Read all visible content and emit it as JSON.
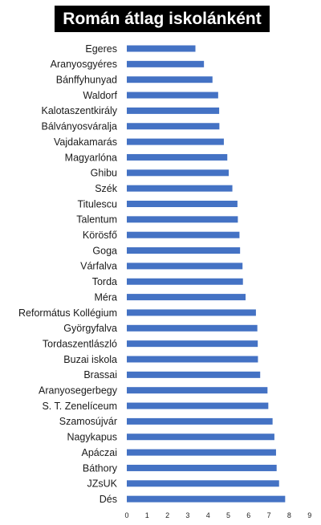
{
  "chart_data": {
    "type": "bar",
    "orientation": "horizontal",
    "title": "Román átlag iskolánként",
    "categories": [
      "Egeres",
      "Aranyosgyéres",
      "Bánffyhunyad",
      "Waldorf",
      "Kalotaszentkirály",
      "Bálványosváralja",
      "Vajdakamarás",
      "Magyarlóna",
      "Ghibu",
      "Szék",
      "Titulescu",
      "Talentum",
      "Körösfő",
      "Goga",
      "Várfalva",
      "Torda",
      "Méra",
      "Református Kollégium",
      "Györgyfalva",
      "Tordaszentlászló",
      "Buzai iskola",
      "Brassai",
      "Aranyosegerbegy",
      "S. T. Zenelíceum",
      "Szamosújvár",
      "Nagykapus",
      "Apáczai",
      "Báthory",
      "JZsUK",
      "Dés"
    ],
    "values": [
      3.38,
      3.8,
      4.22,
      4.5,
      4.55,
      4.56,
      4.78,
      4.95,
      5.02,
      5.2,
      5.45,
      5.47,
      5.55,
      5.58,
      5.7,
      5.72,
      5.85,
      6.36,
      6.43,
      6.45,
      6.46,
      6.57,
      6.93,
      6.97,
      7.18,
      7.27,
      7.35,
      7.38,
      7.5,
      7.8
    ],
    "xlim": [
      0,
      9
    ],
    "xticks": [
      "0",
      "1",
      "2",
      "3",
      "4",
      "5",
      "6",
      "7",
      "8",
      "9"
    ],
    "bar_color": "#4472C4",
    "grid": false,
    "xlabel": "",
    "ylabel": ""
  }
}
